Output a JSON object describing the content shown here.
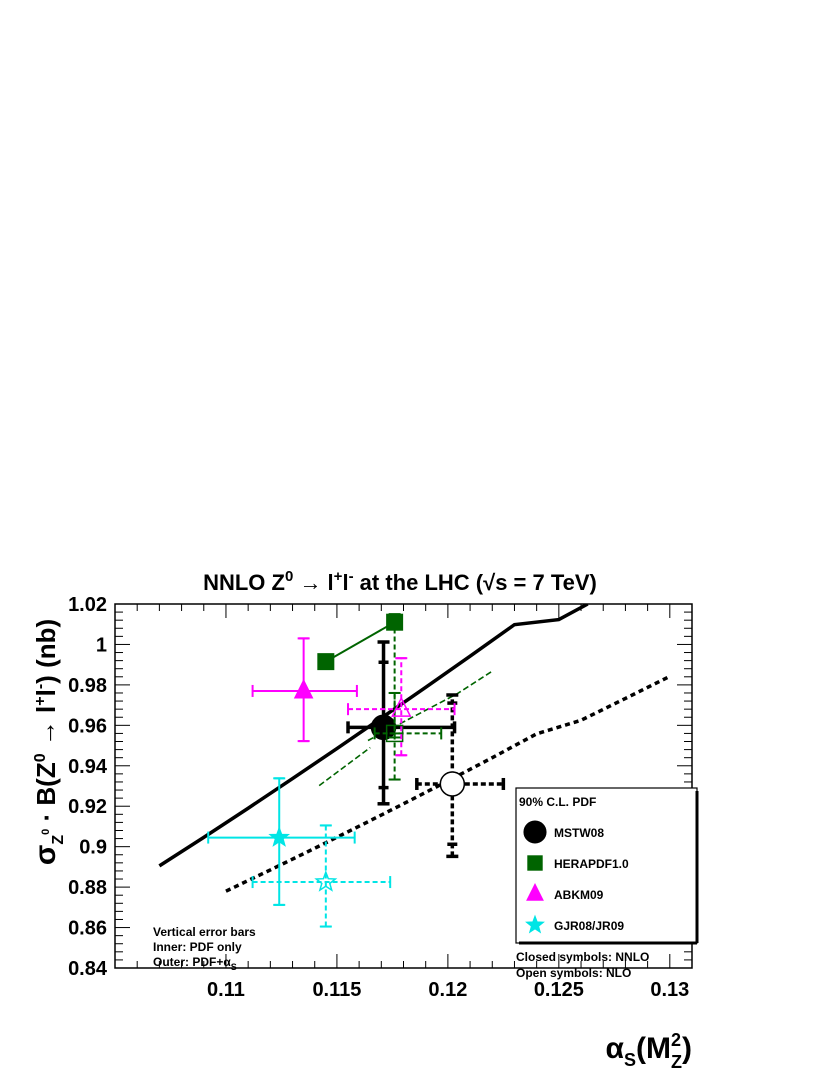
{
  "chart_data": {
    "type": "scatter",
    "title": "NNLO Z⁰ → l⁺l⁻ at the LHC (√s = 7 TeV)",
    "xlabel": "αS(M²Z)",
    "ylabel": "σZ⁰ · B(Z⁰ → l⁺l⁻)  (nb)",
    "xlim": [
      0.105,
      0.131
    ],
    "ylim": [
      0.84,
      1.02
    ],
    "x_ticks": [
      "0.11",
      "0.115",
      "0.12",
      "0.125",
      "0.13"
    ],
    "y_ticks": [
      "0.84",
      "0.86",
      "0.88",
      "0.9",
      "0.92",
      "0.94",
      "0.96",
      "0.98",
      "1",
      "1.02"
    ],
    "x_tick_values": [
      0.11,
      0.115,
      0.12,
      0.125,
      0.13
    ],
    "y_tick_values": [
      0.84,
      0.86,
      0.88,
      0.9,
      0.92,
      0.94,
      0.96,
      0.98,
      1.0,
      1.02
    ],
    "grid": false,
    "legend_position": "bottom-right",
    "legend_title": "90% C.L. PDF",
    "legend_entries": [
      {
        "label": "MSTW08",
        "marker": "circle",
        "color": "#000000"
      },
      {
        "label": "HERAPDF1.0",
        "marker": "square",
        "color": "#006400"
      },
      {
        "label": "ABKM09",
        "marker": "triangle",
        "color": "#ff00ff"
      },
      {
        "label": "GJR08/JR09",
        "marker": "star",
        "color": "#00e5e5"
      }
    ],
    "note_left": [
      "Vertical error bars",
      "Inner: PDF only",
      "Outer: PDF+αS"
    ],
    "note_right": [
      "Closed symbols: NNLO",
      "Open symbols: NLO"
    ],
    "points": [
      {
        "group": "MSTW08",
        "order": "NNLO",
        "marker": "circle",
        "filled": true,
        "color": "#000000",
        "x": 0.1171,
        "y": 0.959,
        "xerr": [
          0.1155,
          0.1203
        ],
        "yerr_inner": [
          0.9292,
          0.9912
        ],
        "yerr_outer": [
          0.9212,
          1.0012
        ],
        "dashed": false
      },
      {
        "group": "MSTW08",
        "order": "NLO",
        "marker": "circle",
        "filled": false,
        "color": "#000000",
        "x": 0.1202,
        "y": 0.931,
        "xerr": [
          0.1186,
          0.1225
        ],
        "yerr_inner": [
          0.9012,
          0.971
        ],
        "yerr_outer": [
          0.8952,
          0.975
        ],
        "dashed": true
      },
      {
        "group": "HERAPDF1.0",
        "order": "NNLO",
        "marker": "square",
        "filled": true,
        "color": "#006400",
        "x": 0.1176,
        "y": 1.011,
        "xerr": null,
        "yerr_inner": [
          0.956,
          1.011
        ],
        "yerr_outer": [
          0.954,
          1.015
        ],
        "dashed": true
      },
      {
        "group": "HERAPDF1.0",
        "order": "NLO",
        "marker": "square",
        "filled": false,
        "color": "#006400",
        "x": 0.1176,
        "y": 0.956,
        "xerr": [
          0.1167,
          0.1197
        ],
        "yerr_inner": [
          0.9332,
          0.976
        ],
        "yerr_outer": [
          0.9332,
          0.976
        ],
        "dashed": true
      },
      {
        "group": "HERAPDF1.0",
        "order": "NNLO",
        "marker": "square",
        "filled": true,
        "color": "#006400",
        "x": 0.1145,
        "y": 0.9915,
        "xerr": null,
        "yerr_inner": null,
        "yerr_outer": null,
        "dashed": false
      },
      {
        "group": "ABKM09",
        "order": "NNLO",
        "marker": "triangle",
        "filled": true,
        "color": "#ff00ff",
        "x": 0.1135,
        "y": 0.977,
        "xerr": [
          0.1112,
          0.1159
        ],
        "yerr_inner": [
          0.9522,
          1.003
        ],
        "yerr_outer": [
          0.9522,
          1.003
        ],
        "dashed": false
      },
      {
        "group": "ABKM09",
        "order": "NLO",
        "marker": "triangle",
        "filled": false,
        "color": "#ff00ff",
        "x": 0.1179,
        "y": 0.968,
        "xerr": [
          0.1155,
          0.1203
        ],
        "yerr_inner": [
          0.9452,
          0.9932
        ],
        "yerr_outer": [
          0.9452,
          0.9932
        ],
        "dashed": true
      },
      {
        "group": "GJR08/JR09",
        "order": "NNLO",
        "marker": "star",
        "filled": true,
        "color": "#00e5e5",
        "x": 0.1124,
        "y": 0.9045,
        "xerr": [
          0.1092,
          0.1158
        ],
        "yerr_inner": [
          0.8712,
          0.9338
        ],
        "yerr_outer": [
          0.8712,
          0.9338
        ],
        "dashed": false
      },
      {
        "group": "GJR08/JR09",
        "order": "NLO",
        "marker": "star",
        "filled": false,
        "color": "#00e5e5",
        "x": 0.1145,
        "y": 0.8825,
        "xerr": [
          0.1112,
          0.1174
        ],
        "yerr_inner": [
          0.8605,
          0.9105
        ],
        "yerr_outer": [
          0.8605,
          0.9105
        ],
        "dashed": true
      }
    ],
    "curves": [
      {
        "name": "NNLO",
        "style": "solid",
        "color": "#000000",
        "x": [
          0.107,
          0.109,
          0.111,
          0.113,
          0.115,
          0.117,
          0.119,
          0.121,
          0.123,
          0.125,
          0.1263
        ],
        "y": [
          0.8905,
          0.9046,
          0.919,
          0.9337,
          0.9485,
          0.9636,
          0.9788,
          0.9942,
          1.0098,
          1.0123,
          1.02
        ]
      },
      {
        "name": "NLO",
        "style": "dashed",
        "color": "#000000",
        "x": [
          0.11,
          0.112,
          0.114,
          0.116,
          0.118,
          0.12,
          0.122,
          0.124,
          0.126,
          0.128,
          0.13
        ],
        "y": [
          0.878,
          0.8885,
          0.8992,
          0.9101,
          0.9212,
          0.9325,
          0.944,
          0.9558,
          0.9625,
          0.9733,
          0.9842
        ]
      },
      {
        "name": "HERA-NNLO-band",
        "style": "dashed",
        "color": "#006400",
        "x": [
          0.1164,
          0.1204,
          0.122
        ],
        "y": [
          0.9525,
          0.9755,
          0.9868
        ]
      },
      {
        "name": "HERA-NLO-band",
        "style": "dashed",
        "color": "#006400",
        "x": [
          0.1142,
          0.1165
        ],
        "y": [
          0.9302,
          0.949
        ]
      },
      {
        "name": "HERA-connector",
        "style": "solid",
        "color": "#006400",
        "x": [
          0.1145,
          0.1176
        ],
        "y": [
          0.9915,
          1.011
        ]
      }
    ]
  }
}
